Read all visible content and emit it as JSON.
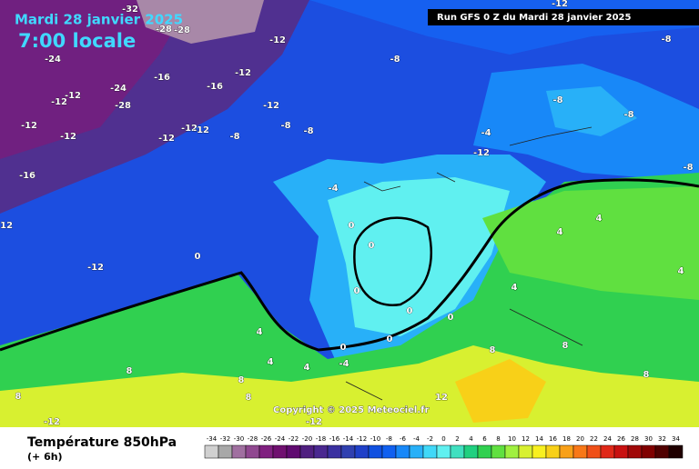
{
  "header": {
    "title": "Mardi 28 janvier 2025",
    "time": "7:00 locale",
    "run": "Run GFS 0 Z du Mardi 28 janvier 2025"
  },
  "map": {
    "copyright": "Copyright © 2025 Meteociel.fr",
    "contour_labels": [
      -32,
      -28,
      -28,
      -24,
      -12,
      -12,
      -16,
      -16,
      -8,
      -24,
      -12,
      -12,
      -28,
      -12,
      -8,
      -8,
      -12,
      -12,
      -12,
      -12,
      -12,
      -8,
      -16,
      -12,
      -12,
      -4,
      0,
      0,
      0,
      0,
      0,
      0,
      0,
      0,
      -4,
      4,
      4,
      4,
      8,
      8,
      8,
      8,
      -12,
      -12,
      12,
      4,
      4,
      4,
      8,
      8,
      -8,
      -8,
      -8,
      -12,
      -4,
      4,
      8,
      -8,
      -12
    ]
  },
  "legend": {
    "title": "Température 850hPa",
    "lead": "(+ 6h)",
    "values": [
      -34,
      -32,
      -30,
      -28,
      -26,
      -24,
      -22,
      -20,
      -18,
      -16,
      -14,
      -12,
      -10,
      -8,
      -6,
      -4,
      -2,
      0,
      2,
      4,
      6,
      8,
      10,
      12,
      14,
      16,
      18,
      20,
      22,
      24,
      26,
      28,
      30,
      32,
      34
    ],
    "colors": [
      "#d0d0d0",
      "#a8a8a8",
      "#a070a0",
      "#904890",
      "#802080",
      "#701070",
      "#600a70",
      "#502080",
      "#4a2890",
      "#3a30a0",
      "#3040b0",
      "#2040c8",
      "#1050e0",
      "#1060f0",
      "#1888f8",
      "#28b0f8",
      "#40d8f8",
      "#60f0f0",
      "#40e0c0",
      "#20d080",
      "#30d050",
      "#60e040",
      "#a0f040",
      "#d8f030",
      "#f8f020",
      "#f8d018",
      "#f8a018",
      "#f87818",
      "#f05018",
      "#e02818",
      "#c81010",
      "#a00808",
      "#800000",
      "#500000",
      "#200000"
    ]
  }
}
